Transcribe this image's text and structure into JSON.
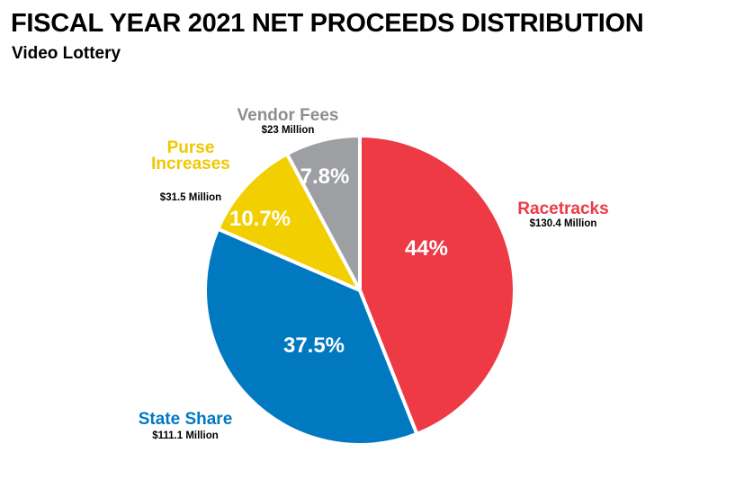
{
  "title": "FISCAL YEAR 2021 NET PROCEEDS DISTRIBUTION",
  "subtitle": "Video Lottery",
  "chart_data": {
    "type": "pie",
    "slices": [
      {
        "label": "Racetracks",
        "label_lines": [
          "Racetracks"
        ],
        "amount": "$130.4 Million",
        "value": 44,
        "pct_label": "44%",
        "color": "#ed3a45"
      },
      {
        "label": "State Share",
        "label_lines": [
          "State Share"
        ],
        "amount": "$111.1 Million",
        "value": 37.5,
        "pct_label": "37.5%",
        "color": "#0079c1"
      },
      {
        "label": "Purse Increases",
        "label_lines": [
          "Purse",
          "Increases"
        ],
        "amount": "$31.5 Million",
        "value": 10.7,
        "pct_label": "10.7%",
        "color": "#f2cf00"
      },
      {
        "label": "Vendor Fees",
        "label_lines": [
          "Vendor Fees"
        ],
        "amount": "$23 Million",
        "value": 7.8,
        "pct_label": "7.8%",
        "color": "#9d9fa2"
      }
    ]
  }
}
